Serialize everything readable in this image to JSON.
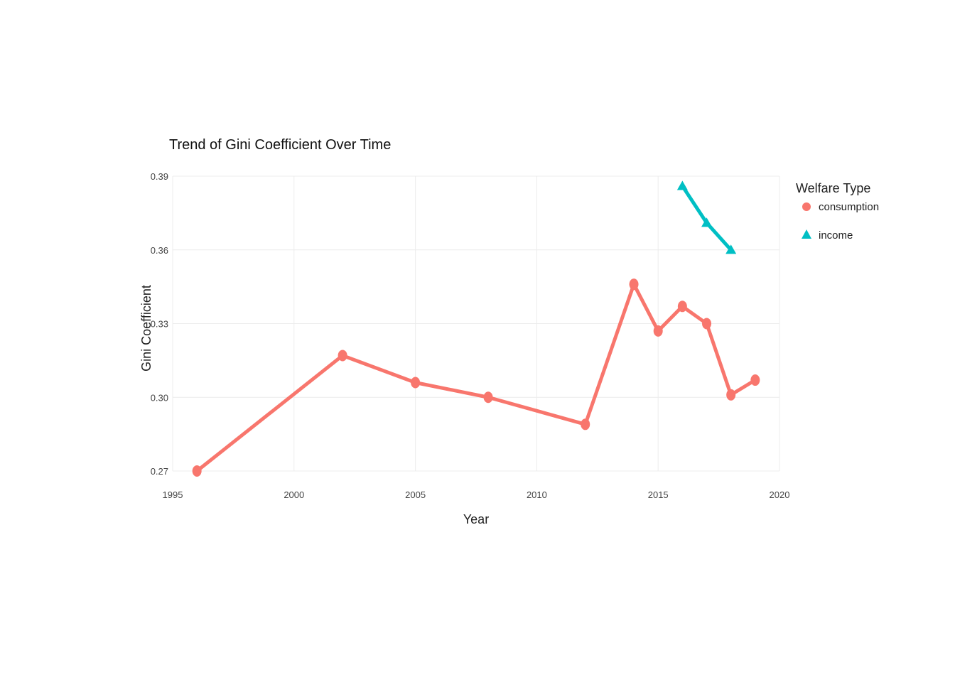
{
  "chart_data": {
    "type": "line",
    "title": "Trend of Gini Coefficient Over Time",
    "xlabel": "Year",
    "ylabel": "Gini Coefficient",
    "xlim": [
      1995,
      2020
    ],
    "ylim": [
      0.27,
      0.39
    ],
    "xticks": [
      1995,
      2000,
      2005,
      2010,
      2015,
      2020
    ],
    "yticks": [
      0.27,
      0.3,
      0.33,
      0.36,
      0.39
    ],
    "ytick_labels": [
      "0.27",
      "0.30",
      "0.33",
      "0.36",
      "0.39"
    ],
    "grid": true,
    "legend": {
      "title": "Welfare Type",
      "position": "right"
    },
    "series": [
      {
        "name": "consumption",
        "color": "#F8766D",
        "marker": "circle",
        "x": [
          1996,
          2002,
          2005,
          2008,
          2012,
          2014,
          2015,
          2016,
          2017,
          2018,
          2019
        ],
        "y": [
          0.27,
          0.317,
          0.306,
          0.3,
          0.289,
          0.346,
          0.327,
          0.337,
          0.33,
          0.301,
          0.307
        ]
      },
      {
        "name": "income",
        "color": "#00BFC4",
        "marker": "triangle",
        "x": [
          2016,
          2017,
          2018
        ],
        "y": [
          0.386,
          0.371,
          0.36
        ]
      }
    ]
  }
}
